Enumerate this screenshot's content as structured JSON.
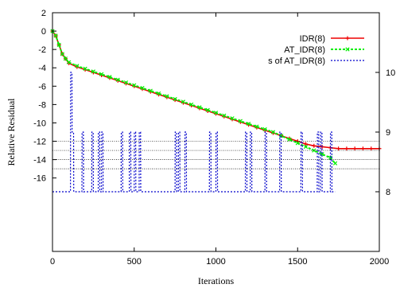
{
  "chart_data": {
    "type": "line",
    "title": "",
    "xlabel": "Iterations",
    "ylabel": "Relative Residual",
    "xlim": [
      0,
      2000
    ],
    "ylim": [
      -24,
      2
    ],
    "y2lim": [
      7.0,
      11.0
    ],
    "grid": false,
    "legend_position": "top-right",
    "x_ticks": [
      0,
      500,
      1000,
      1500,
      2000
    ],
    "y_ticks": [
      2,
      0,
      -2,
      -4,
      -6,
      -8,
      -10,
      -12,
      -14,
      -16
    ],
    "y2_ticks": [
      8,
      9,
      10
    ],
    "reference_lines": [
      -12,
      -13,
      -14,
      -15
    ],
    "series": [
      {
        "name": "IDR(8)",
        "color": "#ee0000",
        "style": "solid-plus",
        "x": [
          0,
          20,
          40,
          60,
          80,
          100,
          150,
          200,
          250,
          300,
          350,
          400,
          450,
          500,
          550,
          600,
          650,
          700,
          750,
          800,
          850,
          900,
          950,
          1000,
          1050,
          1100,
          1150,
          1200,
          1250,
          1300,
          1350,
          1400,
          1450,
          1500,
          1550,
          1600,
          1650,
          1700,
          1750,
          1800,
          1850,
          1900,
          1950,
          2000
        ],
        "y": [
          0,
          -0.5,
          -1.5,
          -2.5,
          -3.0,
          -3.5,
          -3.9,
          -4.2,
          -4.5,
          -4.8,
          -5.1,
          -5.4,
          -5.7,
          -6.0,
          -6.3,
          -6.6,
          -6.9,
          -7.2,
          -7.5,
          -7.8,
          -8.1,
          -8.4,
          -8.7,
          -9.0,
          -9.3,
          -9.6,
          -9.9,
          -10.2,
          -10.5,
          -10.8,
          -11.1,
          -11.4,
          -11.7,
          -12.0,
          -12.3,
          -12.5,
          -12.6,
          -12.7,
          -12.8,
          -12.8,
          -12.8,
          -12.8,
          -12.8,
          -12.8
        ]
      },
      {
        "name": "AT_IDR(8)",
        "color": "#00ee00",
        "style": "dotted-x",
        "x": [
          0,
          20,
          40,
          60,
          80,
          100,
          150,
          200,
          250,
          300,
          350,
          400,
          450,
          500,
          550,
          600,
          650,
          700,
          750,
          800,
          850,
          900,
          950,
          1000,
          1050,
          1100,
          1150,
          1200,
          1250,
          1300,
          1350,
          1400,
          1450,
          1500,
          1550,
          1600,
          1650,
          1700,
          1730
        ],
        "y": [
          0,
          -0.5,
          -1.5,
          -2.5,
          -3.0,
          -3.4,
          -3.8,
          -4.1,
          -4.4,
          -4.7,
          -5.0,
          -5.3,
          -5.6,
          -5.9,
          -6.2,
          -6.5,
          -6.8,
          -7.1,
          -7.4,
          -7.7,
          -8.0,
          -8.3,
          -8.6,
          -8.9,
          -9.2,
          -9.5,
          -9.8,
          -10.1,
          -10.4,
          -10.7,
          -11.0,
          -11.4,
          -11.8,
          -12.2,
          -12.6,
          -13.0,
          -13.4,
          -13.8,
          -14.4
        ]
      },
      {
        "name": "s of AT_IDR(8)",
        "color": "#0000cc",
        "style": "dotted",
        "axis": "right",
        "x": [
          0,
          110,
          111,
          119,
          120,
          129,
          130,
          180,
          181,
          189,
          190,
          240,
          241,
          249,
          250,
          280,
          281,
          289,
          290,
          300,
          301,
          309,
          310,
          420,
          421,
          429,
          430,
          470,
          471,
          479,
          480,
          500,
          501,
          509,
          510,
          530,
          531,
          539,
          540,
          750,
          751,
          759,
          760,
          770,
          771,
          779,
          780,
          810,
          811,
          819,
          820,
          960,
          961,
          969,
          970,
          1000,
          1001,
          1009,
          1010,
          1180,
          1181,
          1189,
          1190,
          1210,
          1211,
          1219,
          1220,
          1300,
          1301,
          1309,
          1310,
          1390,
          1391,
          1399,
          1400,
          1520,
          1521,
          1529,
          1530,
          1620,
          1621,
          1629,
          1630,
          1640,
          1641,
          1649,
          1650,
          1700,
          1701,
          1709,
          1710,
          1730
        ],
        "y": [
          8,
          8,
          10,
          10,
          9,
          9,
          8,
          8,
          9,
          9,
          8,
          8,
          9,
          9,
          8,
          8,
          9,
          9,
          8,
          8,
          9,
          9,
          8,
          8,
          9,
          9,
          8,
          8,
          9,
          9,
          8,
          8,
          9,
          9,
          8,
          8,
          9,
          9,
          8,
          8,
          9,
          9,
          8,
          8,
          9,
          9,
          8,
          8,
          9,
          9,
          8,
          8,
          9,
          9,
          8,
          8,
          9,
          9,
          8,
          8,
          9,
          9,
          8,
          8,
          9,
          9,
          8,
          8,
          9,
          9,
          8,
          8,
          9,
          9,
          8,
          8,
          9,
          9,
          8,
          8,
          9,
          9,
          8,
          8,
          9,
          9,
          8,
          8,
          9,
          9,
          8,
          8
        ]
      }
    ]
  }
}
